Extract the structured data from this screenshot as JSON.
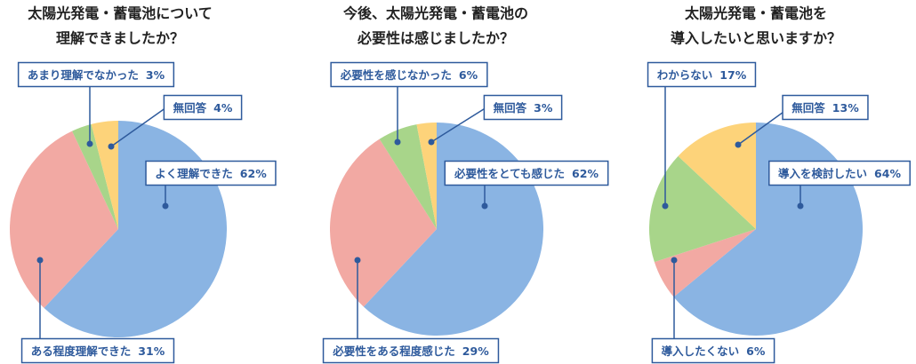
{
  "chart_data": [
    {
      "type": "pie",
      "title": [
        "太陽光発電・蓄電池について",
        "理解できましたか？"
      ],
      "categories": [
        "よく理解できた",
        "ある程度理解できた",
        "あまり理解でなかった",
        "無回答"
      ],
      "values": [
        62,
        31,
        3,
        4
      ],
      "value_labels": [
        "62%",
        "31%",
        "3%",
        "4%"
      ],
      "colors": [
        "#8ab4e3",
        "#f2a9a3",
        "#a8d58a",
        "#fdd37a"
      ]
    },
    {
      "type": "pie",
      "title": [
        "今後、太陽光発電・蓄電池の",
        "必要性は感じましたか？"
      ],
      "categories": [
        "必要性をとても感じた",
        "必要性をある程度感じた",
        "必要性を感じなかった",
        "無回答"
      ],
      "values": [
        62,
        29,
        6,
        3
      ],
      "value_labels": [
        "62%",
        "29%",
        "6%",
        "3%"
      ],
      "colors": [
        "#8ab4e3",
        "#f2a9a3",
        "#a8d58a",
        "#fdd37a"
      ]
    },
    {
      "type": "pie",
      "title": [
        "太陽光発電・蓄電池を",
        "導入したいと思いますか？"
      ],
      "categories": [
        "導入を検討したい",
        "導入したくない",
        "わからない",
        "無回答"
      ],
      "values": [
        64,
        6,
        17,
        13
      ],
      "value_labels": [
        "64%",
        "6%",
        "17%",
        "13%"
      ],
      "colors": [
        "#8ab4e3",
        "#f2a9a3",
        "#a8d58a",
        "#fdd37a"
      ]
    }
  ]
}
